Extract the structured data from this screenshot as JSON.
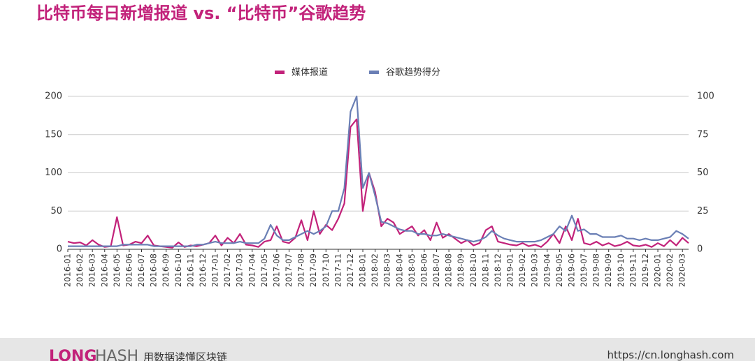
{
  "chart_data": {
    "type": "line",
    "title": "比特币每日新增报道 vs. “比特币”谷歌趋势",
    "categories": [
      "2016-01",
      null,
      "2016-02",
      null,
      "2016-03",
      null,
      "2016-04",
      null,
      "2016-05",
      null,
      "2016-06",
      null,
      "2016-07",
      null,
      "2016-08",
      null,
      "2016-09",
      null,
      "2016-10",
      null,
      "2016-11",
      null,
      "2016-12",
      null,
      "2017-01",
      null,
      "2017-02",
      null,
      "2017-03",
      null,
      "2017-04",
      null,
      "2017-05",
      null,
      "2017-06",
      null,
      "2017-07",
      null,
      "2017-08",
      null,
      "2017-09",
      null,
      "2017-10",
      null,
      "2017-11",
      null,
      "2017-12",
      null,
      "2018-01",
      null,
      "2018-02",
      null,
      "2018-03",
      null,
      "2018-04",
      null,
      "2018-05",
      null,
      "2018-06",
      null,
      "2018-07",
      null,
      "2018-08",
      null,
      "2018-09",
      null,
      "2018-10",
      null,
      "2018-11",
      null,
      "2018-12",
      null,
      "2019-01",
      null,
      "2019-02",
      null,
      "2019-03",
      null,
      "2019-04",
      null,
      "2019-05",
      null,
      "2019-06",
      null,
      "2019-07",
      null,
      "2019-08",
      null,
      "2019-09",
      null,
      "2019-10",
      null,
      "2019-11",
      null,
      "2019-12",
      null,
      "2020-01",
      null,
      "2020-02",
      null,
      "2020-03",
      null
    ],
    "series": [
      {
        "name": "媒体报道",
        "color": "#c2227a",
        "values": [
          10,
          8,
          9,
          5,
          12,
          6,
          3,
          4,
          42,
          5,
          6,
          10,
          8,
          18,
          5,
          4,
          3,
          2,
          9,
          3,
          5,
          4,
          6,
          8,
          18,
          5,
          15,
          8,
          20,
          6,
          5,
          3,
          10,
          12,
          30,
          10,
          8,
          15,
          38,
          12,
          50,
          20,
          32,
          25,
          40,
          60,
          160,
          170,
          50,
          100,
          75,
          30,
          40,
          35,
          20,
          25,
          30,
          18,
          25,
          12,
          35,
          15,
          20,
          14,
          8,
          12,
          5,
          8,
          25,
          30,
          10,
          8,
          6,
          5,
          8,
          4,
          6,
          3,
          10,
          20,
          8,
          30,
          12,
          40,
          8,
          6,
          10,
          5,
          8,
          4,
          6,
          10,
          5,
          4,
          6,
          3,
          8,
          4,
          12,
          5,
          15,
          8
        ]
      },
      {
        "name": "谷歌趋势得分",
        "color": "#6a7fb5",
        "axis": "y2",
        "values": [
          2,
          2,
          2,
          2,
          2,
          2,
          2,
          2,
          2,
          3,
          3,
          3,
          3,
          3,
          2,
          2,
          2,
          2,
          2,
          2,
          2,
          3,
          3,
          4,
          5,
          4,
          4,
          4,
          5,
          4,
          4,
          4,
          7,
          16,
          9,
          6,
          6,
          8,
          10,
          12,
          10,
          12,
          15,
          25,
          25,
          40,
          90,
          100,
          40,
          50,
          35,
          18,
          17,
          15,
          13,
          12,
          12,
          10,
          10,
          9,
          9,
          10,
          9,
          8,
          7,
          6,
          5,
          6,
          8,
          12,
          9,
          7,
          6,
          5,
          5,
          5,
          5,
          6,
          8,
          10,
          15,
          12,
          22,
          12,
          13,
          10,
          10,
          8,
          8,
          8,
          9,
          7,
          7,
          6,
          7,
          6,
          6,
          7,
          8,
          12,
          10,
          7
        ]
      }
    ],
    "ylim": [
      0,
      200
    ],
    "yticks": [
      0,
      50,
      100,
      150,
      200
    ],
    "y2lim": [
      0,
      100
    ],
    "y2ticks": [
      0,
      25,
      50,
      75,
      100
    ],
    "grid": true,
    "legend": "top"
  },
  "footer": {
    "brand_1": "LONG",
    "brand_2": "HASH",
    "slogan": "用数据读懂区块链",
    "url": "https://cn.longhash.com"
  }
}
